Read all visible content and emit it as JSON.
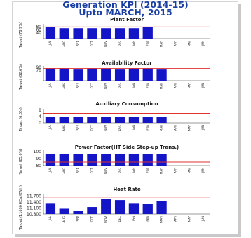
{
  "page": {
    "title_line1": "Generation KPI (2014-15)",
    "title_line2": "Upto MARCH, 2015"
  },
  "colors": {
    "bar": "#1515c8",
    "target": "#e03030",
    "title": "#1a3fa4",
    "axis": "#333333"
  },
  "chart_data": [
    {
      "type": "bar",
      "title": "Plant Factor",
      "ylabel": "Target (78.9%)",
      "categories": [
        "JUL",
        "AUG",
        "SEP",
        "OCT",
        "NOV",
        "DEC",
        "JAN",
        "FEB",
        "MAR",
        "APR",
        "MAY",
        "JUN"
      ],
      "values": [
        80,
        70,
        70,
        70,
        70,
        70,
        70,
        80,
        null,
        null,
        null,
        null
      ],
      "target": 78.9,
      "ylim": [
        0,
        90
      ],
      "yticks": [
        "40",
        "60",
        "80"
      ],
      "ytick_values": [
        40,
        60,
        80
      ]
    },
    {
      "type": "bar",
      "title": "Availability Factor",
      "ylabel": "Target (82.6%)",
      "categories": [
        "JUL",
        "AUG",
        "SEP",
        "OCT",
        "NOV",
        "DEC",
        "JAN",
        "FEB",
        "MAR",
        "APR",
        "MAY",
        "JUN"
      ],
      "values": [
        85,
        85,
        80,
        85,
        85,
        80,
        85,
        85,
        80,
        null,
        null,
        null
      ],
      "target": 82.6,
      "ylim": [
        0,
        90
      ],
      "yticks": [
        "70",
        "90"
      ],
      "ytick_values": [
        70,
        90
      ]
    },
    {
      "type": "bar",
      "title": "Auxiliary Consumption",
      "ylabel": "Target (6.0%)",
      "categories": [
        "JUL",
        "AUG",
        "SEP",
        "OCT",
        "NOV",
        "DEC",
        "JAN",
        "FEB",
        "MAR",
        "APR",
        "MAY",
        "JUN"
      ],
      "values": [
        4,
        4,
        4,
        4,
        4,
        4,
        4,
        4,
        4,
        null,
        null,
        null
      ],
      "target": 6,
      "ylim": [
        0,
        8
      ],
      "yticks": [
        "8",
        "4",
        "0"
      ],
      "ytick_values": [
        8,
        4,
        0
      ]
    },
    {
      "type": "bar",
      "title": "Power Factor(HT Side Step-up Trans.)",
      "ylabel": "Target (85.0%)",
      "categories": [
        "JUL",
        "AUG",
        "SEP",
        "OCT",
        "NOV",
        "DEC",
        "JAN",
        "FEB",
        "MAR",
        "APR",
        "MAY",
        "JUN"
      ],
      "values": [
        97,
        97,
        97,
        97,
        97,
        97,
        97,
        97,
        97,
        null,
        null,
        null
      ],
      "target": 85,
      "ylim": [
        80,
        100
      ],
      "yticks": [
        "100",
        "90",
        "80"
      ],
      "ytick_values": [
        100,
        90,
        80
      ]
    },
    {
      "type": "bar",
      "title": "Heat Rate",
      "ylabel": "Target (11650 KCal/KWH)",
      "categories": [
        "JUL",
        "AUG",
        "SEP",
        "OCT",
        "NOV",
        "DEC",
        "JAN",
        "FEB",
        "MAR",
        "APR",
        "MAY",
        "JUN"
      ],
      "values": [
        11350,
        11100,
        10950,
        11150,
        11550,
        11500,
        11350,
        11300,
        11450,
        null,
        null,
        null
      ],
      "target": 11650,
      "ylim": [
        10800,
        11750
      ],
      "yticks": [
        "11,700",
        "11,400",
        "11,100",
        "10,800"
      ],
      "ytick_values": [
        11700,
        11400,
        11100,
        10800
      ]
    }
  ]
}
